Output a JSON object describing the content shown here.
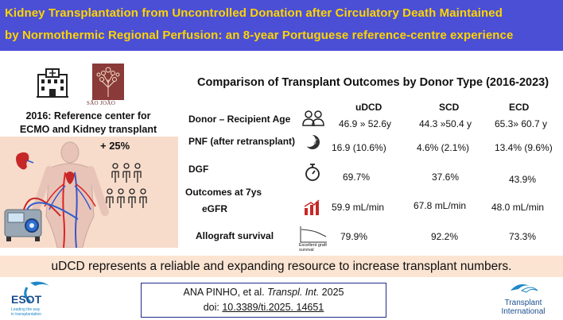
{
  "header": {
    "title_line1": "Kidney Transplantation from Uncontrolled Donation after Circulatory Death Maintained",
    "title_line2": "by Normothermic Regional Perfusion: an 8-year Portuguese reference-centre experience",
    "bg_color": "#4b4fd6",
    "text_color": "#ffd400"
  },
  "left_panel": {
    "logo_text": "SÃO JOÃO",
    "reference_line1": "2016: Reference center for",
    "reference_line2": "ECMO and Kidney transplant",
    "increase": "+ 25%",
    "icons": [
      "hospital-icon",
      "sao-joao-tree-logo",
      "kidney-icon",
      "ecmo-machine-icon",
      "people-group-icon",
      "circulatory-body-icon"
    ]
  },
  "comparison": {
    "title": "Comparison of Transplant Outcomes by Donor Type (2016-2023)",
    "columns": [
      "uDCD",
      "SCD",
      "ECD"
    ],
    "rows": [
      {
        "label": "Donor – Recipient Age",
        "icon": "people-icon",
        "values": [
          "46.9 » 52.6y",
          "44.3 »50.4 y",
          "65.3» 60.7 y"
        ]
      },
      {
        "label": "PNF (after retransplant)",
        "icon": "moon-icon",
        "values": [
          "16.9 (10.6%)",
          "4.6% (2.1%)",
          "13.4% (9.6%)"
        ]
      },
      {
        "label": "DGF",
        "icon": "stopwatch-icon",
        "values": [
          "69.7%",
          "37.6%",
          "43.9%"
        ]
      },
      {
        "label": "eGFR",
        "icon": "bar-chart-icon",
        "values": [
          "59.9 mL/min",
          "67.8 mL/min",
          "48.0 mL/min"
        ]
      },
      {
        "label": "Allograft survival",
        "icon": "survival-curve-icon",
        "values": [
          "79.9%",
          "92.2%",
          "73.3%"
        ]
      }
    ],
    "outcomes_header": "Outcomes at 7ys",
    "survival_caption_line1": "Excellent graft",
    "survival_caption_line2": "survival"
  },
  "conclusion": "uDCD represents a reliable and expanding resource to increase transplant numbers.",
  "citation": {
    "line1_prefix": "ANA PINHO, et al. ",
    "journal": "Transpl. Int.",
    "year": " 2025",
    "doi_label": "doi: ",
    "doi": "10.3389/ti.2025. 14651"
  },
  "logos": {
    "esot_name": "ESOT",
    "esot_tagline_line1": "Leading the way",
    "esot_tagline_line2": "in transplantation",
    "ti_line1": "Transplant",
    "ti_line2": "International"
  }
}
